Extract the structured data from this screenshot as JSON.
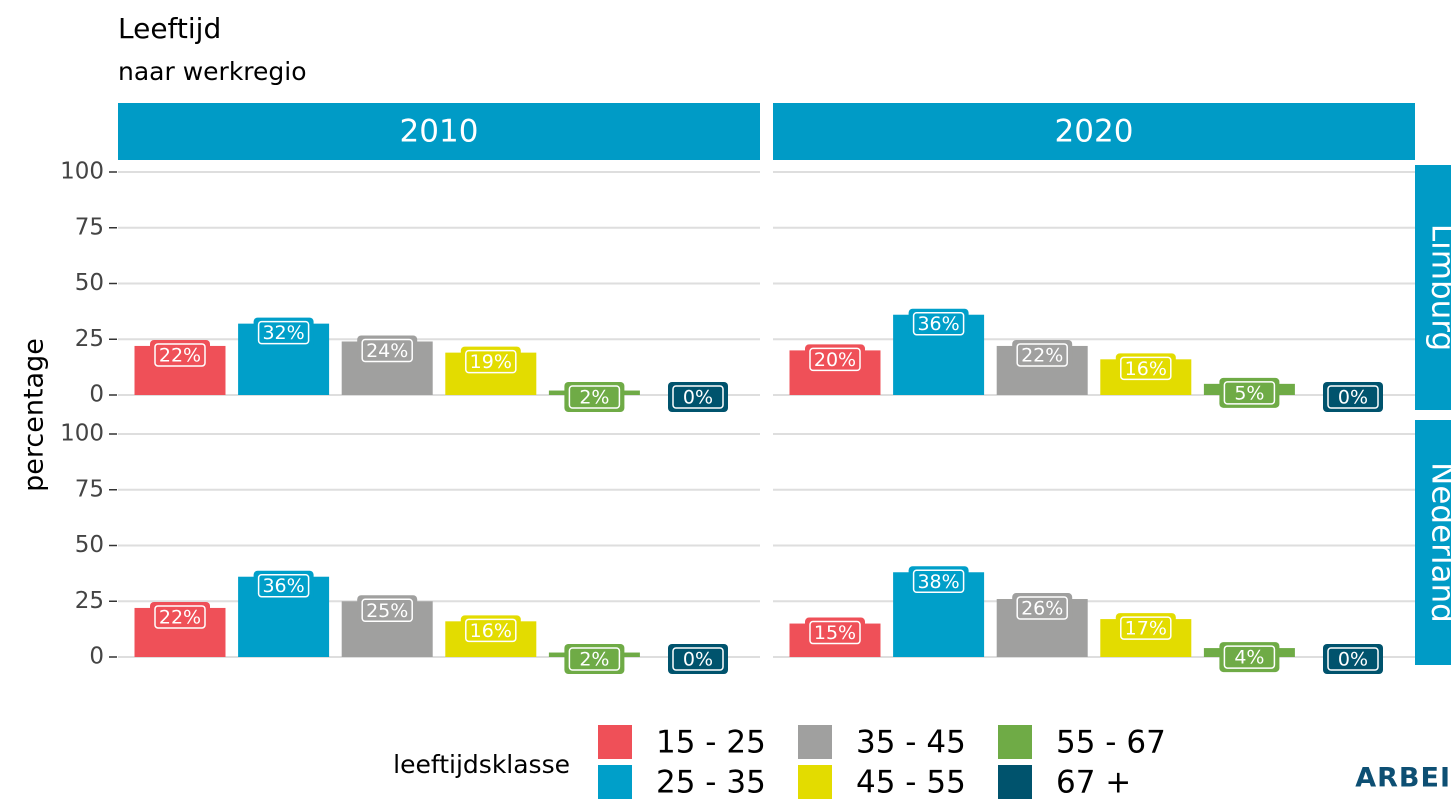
{
  "chart_data": {
    "type": "bar",
    "title": "Leeftijd",
    "subtitle": "naar werkregio",
    "y_label": "percentage",
    "legend_title": "leeftijdsklasse",
    "categories": [
      "15 - 25",
      "25 - 35",
      "35 - 45",
      "45 - 55",
      "55 - 67",
      "67 +"
    ],
    "colors": [
      "#ef5058",
      "#009fc9",
      "#a0a09f",
      "#e3dc00",
      "#6fab46",
      "#00536d"
    ],
    "columns": [
      "2010",
      "2020"
    ],
    "rows": [
      "Limburg",
      "Nederland"
    ],
    "ylim": [
      0,
      100
    ],
    "yticks": [
      0,
      25,
      50,
      75,
      100
    ],
    "grid": true,
    "values": [
      [
        [
          22,
          32,
          24,
          19,
          2,
          0
        ],
        [
          20,
          36,
          22,
          16,
          5,
          0
        ]
      ],
      [
        [
          22,
          36,
          25,
          16,
          2,
          0
        ],
        [
          15,
          38,
          26,
          17,
          4,
          0
        ]
      ]
    ],
    "value_labels": [
      [
        [
          "22%",
          "32%",
          "24%",
          "19%",
          "2%",
          "0%"
        ],
        [
          "20%",
          "36%",
          "22%",
          "16%",
          "5%",
          "0%"
        ]
      ],
      [
        [
          "22%",
          "36%",
          "25%",
          "16%",
          "2%",
          "0%"
        ],
        [
          "15%",
          "38%",
          "26%",
          "17%",
          "4%",
          "0%"
        ]
      ]
    ]
  },
  "logo": "ARBEI"
}
